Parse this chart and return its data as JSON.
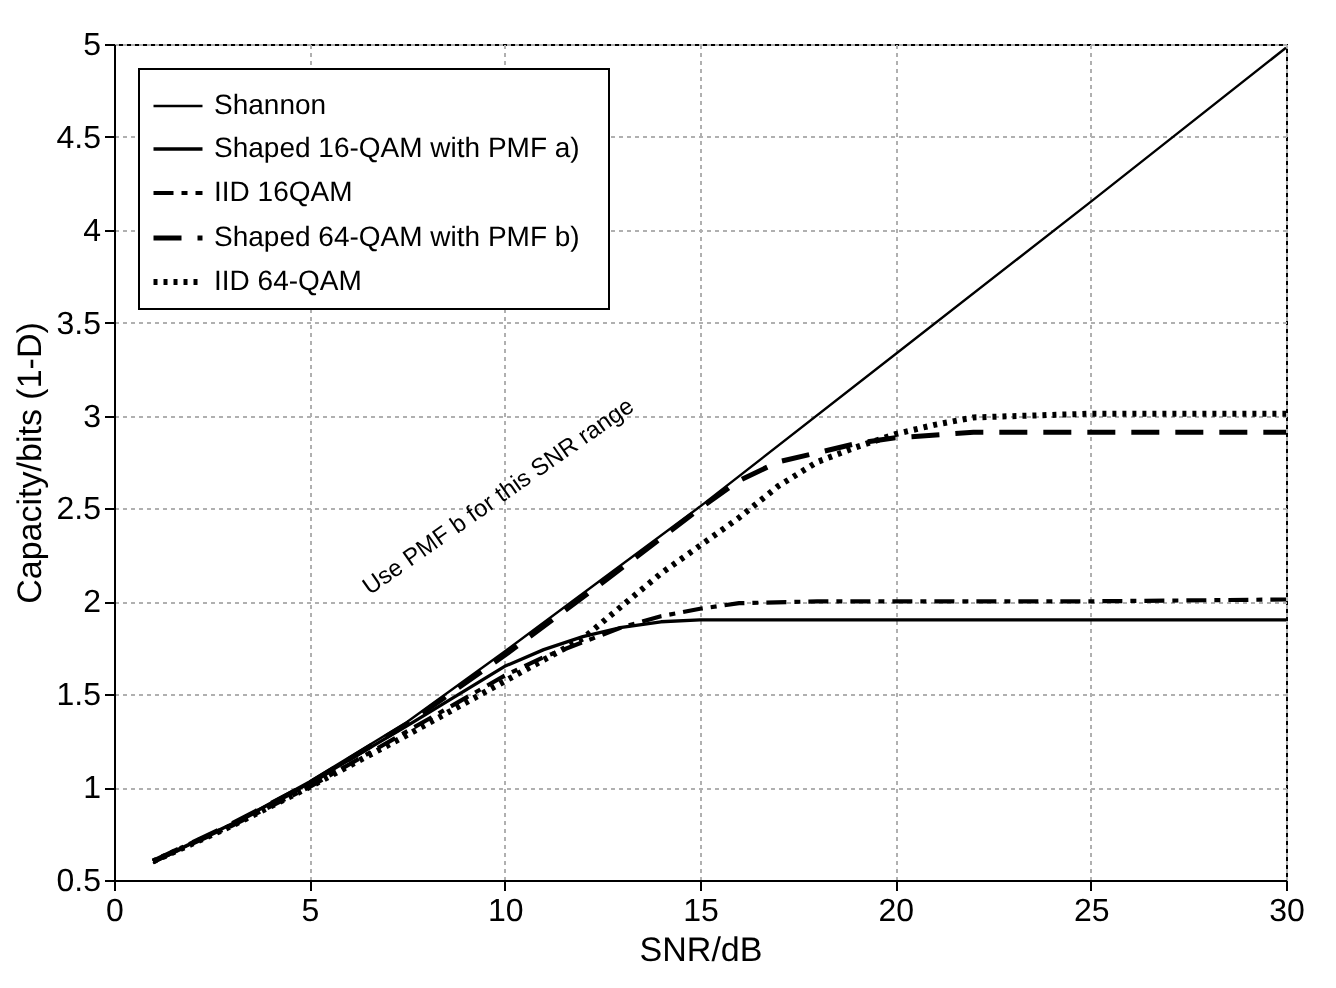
{
  "chart_data": {
    "type": "line",
    "xlabel": "SNR/dB",
    "ylabel": "Capacity/bits (1-D)",
    "xlim": [
      0,
      30
    ],
    "xticks": [
      0,
      5,
      10,
      15,
      20,
      25,
      30
    ],
    "ylim": [
      0.5,
      5
    ],
    "yticks": [
      0.5,
      1,
      1.5,
      2,
      2.5,
      3,
      3.5,
      4,
      4.5,
      5
    ],
    "grid": true,
    "legend": "top left",
    "marker": "none",
    "annotations": [
      "Use PMF b for this SNR range"
    ],
    "series": [
      {
        "name": "Shannon",
        "color": "#000000",
        "line_style": "solid",
        "x": [
          1,
          3,
          5,
          7.5,
          10,
          12.5,
          15,
          20,
          25,
          30
        ],
        "values": [
          0.59,
          0.8,
          1.03,
          1.35,
          1.73,
          2.12,
          2.51,
          3.33,
          4.15,
          4.98
        ]
      },
      {
        "name": "Shaped   16-QAM with PMF a)",
        "color": "#000000",
        "line_style": "solid",
        "x": [
          1,
          3,
          5,
          7.5,
          10,
          11,
          12,
          13,
          14,
          15,
          16,
          20,
          25,
          30
        ],
        "values": [
          0.6,
          0.8,
          1.02,
          1.33,
          1.65,
          1.74,
          1.81,
          1.86,
          1.89,
          1.9,
          1.9,
          1.9,
          1.9,
          1.9
        ]
      },
      {
        "name": "IID 16QAM",
        "color": "#000000",
        "line_style": "dashdot",
        "x": [
          1,
          3,
          5,
          7.5,
          10,
          11,
          12,
          13,
          14,
          15,
          16,
          18,
          20,
          25,
          30
        ],
        "values": [
          0.6,
          0.79,
          1.0,
          1.3,
          1.6,
          1.7,
          1.78,
          1.86,
          1.92,
          1.96,
          1.99,
          2.0,
          2.0,
          2.0,
          2.01
        ]
      },
      {
        "name": "Shaped   64-QAM with PMF b)",
        "color": "#000000",
        "line_style": "dashed",
        "x": [
          1,
          3,
          5,
          7.5,
          10,
          12.5,
          15,
          16,
          17,
          18,
          19,
          20,
          22,
          25,
          30
        ],
        "values": [
          0.6,
          0.8,
          1.02,
          1.34,
          1.71,
          2.1,
          2.5,
          2.65,
          2.75,
          2.8,
          2.85,
          2.88,
          2.91,
          2.91,
          2.91
        ]
      },
      {
        "name": "IID 64-QAM",
        "color": "#000000",
        "line_style": "dotted",
        "x": [
          1,
          3,
          5,
          7.5,
          10,
          12,
          14,
          15,
          16,
          17,
          18,
          19,
          20,
          21,
          22,
          25,
          30
        ],
        "values": [
          0.6,
          0.79,
          1.0,
          1.28,
          1.57,
          1.8,
          2.15,
          2.3,
          2.45,
          2.62,
          2.75,
          2.83,
          2.9,
          2.95,
          2.99,
          3.01,
          3.01
        ]
      }
    ]
  }
}
